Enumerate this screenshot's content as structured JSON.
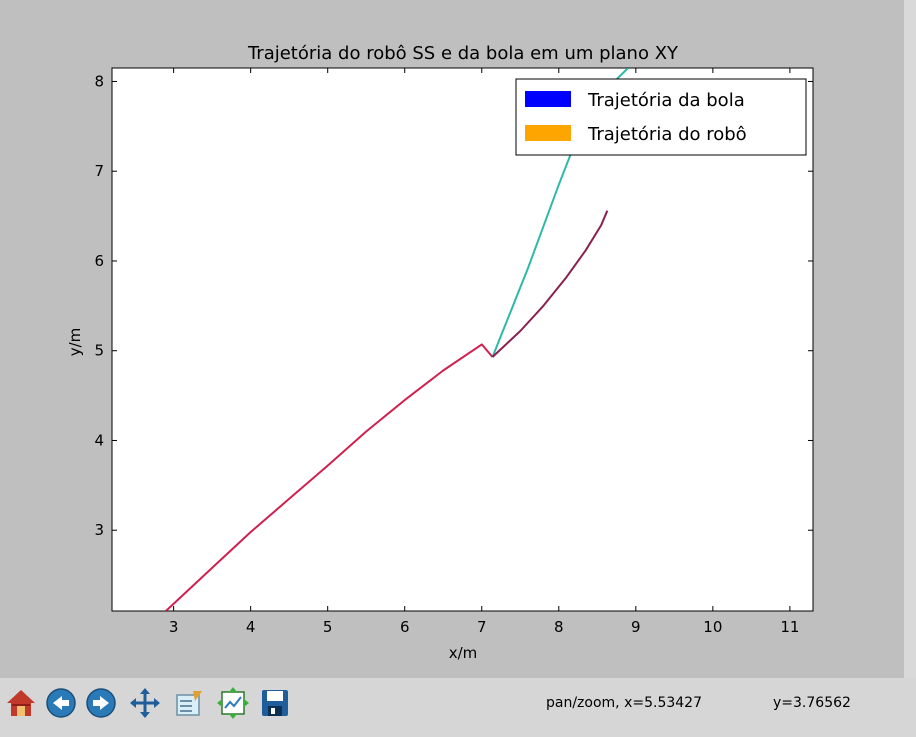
{
  "chart_data": {
    "type": "line",
    "title": "Trajetória do robô SS e da bola em um plano XY",
    "xlabel": "x/m",
    "ylabel": "y/m",
    "xlim": [
      2.2,
      11.3
    ],
    "ylim": [
      2.1,
      8.15
    ],
    "xticks": [
      3,
      4,
      5,
      6,
      7,
      8,
      9,
      10,
      11
    ],
    "yticks": [
      3,
      4,
      5,
      6,
      7,
      8
    ],
    "legend_position": "top-right",
    "legend": [
      {
        "label": "Trajetória da bola",
        "color": "#0000ff"
      },
      {
        "label": "Trajetória do robô",
        "color": "#ffa500"
      }
    ],
    "series": [
      {
        "color": "#2eb8a8",
        "points": [
          [
            7.14,
            4.93
          ],
          [
            7.6,
            5.92
          ],
          [
            8.0,
            6.85
          ],
          [
            8.4,
            7.73
          ],
          [
            8.9,
            8.15
          ]
        ]
      },
      {
        "color": "#d02050",
        "points": [
          [
            2.9,
            2.1
          ],
          [
            3.5,
            2.58
          ],
          [
            4.0,
            2.98
          ],
          [
            4.5,
            3.35
          ],
          [
            5.0,
            3.72
          ],
          [
            5.5,
            4.1
          ],
          [
            6.0,
            4.45
          ],
          [
            6.5,
            4.78
          ],
          [
            7.0,
            5.07
          ],
          [
            7.14,
            4.93
          ]
        ]
      },
      {
        "color": "#8b2050",
        "points": [
          [
            7.14,
            4.93
          ],
          [
            7.5,
            5.22
          ],
          [
            7.8,
            5.5
          ],
          [
            8.1,
            5.82
          ],
          [
            8.35,
            6.12
          ],
          [
            8.55,
            6.4
          ],
          [
            8.63,
            6.56
          ]
        ]
      }
    ]
  },
  "toolbar": {
    "buttons": [
      "home-icon",
      "back-icon",
      "forward-icon",
      "pan-icon",
      "zoom-icon",
      "subplots-icon",
      "save-icon"
    ],
    "mode_text": "pan/zoom, x=5.53427",
    "y_text": "y=3.76562"
  }
}
